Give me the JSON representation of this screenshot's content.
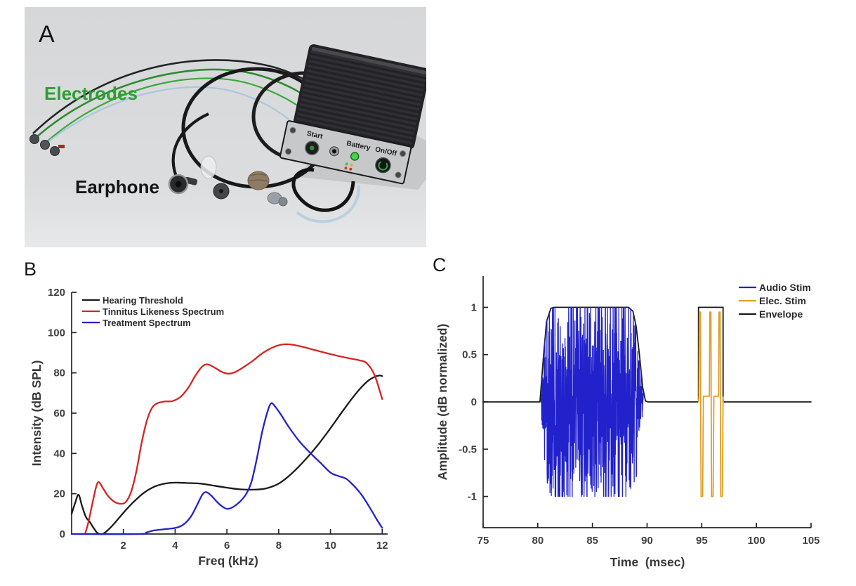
{
  "figure": {
    "background": "#ffffff"
  },
  "panel_a": {
    "label": "A",
    "electrodes_label": "Electrodes",
    "electrodes_color": "#2f9e33",
    "earphone_label": "Earphone",
    "device": {
      "start_label": "Start",
      "battery_label": "Battery",
      "onoff_label": "On/Off"
    }
  },
  "chart_data": [
    {
      "panel_label": "B",
      "type": "line",
      "title": "",
      "xlabel": "Freq (kHz)",
      "ylabel": "Intensity (dB SPL)",
      "xlim": [
        0,
        12.1
      ],
      "ylim": [
        0,
        120
      ],
      "xticks": [
        2,
        4,
        6,
        8,
        10,
        12
      ],
      "yticks": [
        0,
        20,
        40,
        60,
        80,
        100,
        120
      ],
      "grid": false,
      "legend_position": "top-left",
      "series": [
        {
          "name": "Hearing Threshold",
          "color": "#1a1a1a",
          "kind": "smooth",
          "z": 1,
          "points": [
            [
              0,
              10
            ],
            [
              0.15,
              16
            ],
            [
              0.27,
              19.5
            ],
            [
              0.4,
              14
            ],
            [
              0.55,
              8.5
            ],
            [
              0.7,
              6
            ],
            [
              0.85,
              3
            ],
            [
              1.0,
              0.5
            ],
            [
              1.2,
              0
            ],
            [
              1.45,
              2.5
            ],
            [
              1.7,
              6
            ],
            [
              2.0,
              10.5
            ],
            [
              2.4,
              16
            ],
            [
              2.8,
              20.5
            ],
            [
              3.2,
              23.5
            ],
            [
              3.6,
              25
            ],
            [
              4.0,
              25.5
            ],
            [
              4.5,
              25.3
            ],
            [
              5.0,
              25
            ],
            [
              5.5,
              24
            ],
            [
              6.0,
              23
            ],
            [
              6.5,
              22.2
            ],
            [
              7.0,
              22
            ],
            [
              7.5,
              22.6
            ],
            [
              8.0,
              25
            ],
            [
              8.5,
              30
            ],
            [
              9.0,
              36.5
            ],
            [
              9.5,
              44
            ],
            [
              10.0,
              52.5
            ],
            [
              10.5,
              61.5
            ],
            [
              11.0,
              70
            ],
            [
              11.4,
              75.5
            ],
            [
              11.7,
              78
            ],
            [
              11.9,
              78.7
            ],
            [
              12.0,
              78.4
            ]
          ]
        },
        {
          "name": "Tinnitus Likeness Spectrum",
          "color": "#d62420",
          "kind": "smooth",
          "z": 2,
          "points": [
            [
              0.52,
              0
            ],
            [
              0.65,
              6
            ],
            [
              0.8,
              15
            ],
            [
              0.95,
              23.5
            ],
            [
              1.05,
              25.8
            ],
            [
              1.2,
              23
            ],
            [
              1.4,
              19
            ],
            [
              1.65,
              16
            ],
            [
              1.9,
              15
            ],
            [
              2.1,
              16
            ],
            [
              2.3,
              21
            ],
            [
              2.5,
              31
            ],
            [
              2.7,
              45
            ],
            [
              2.9,
              56
            ],
            [
              3.1,
              62.5
            ],
            [
              3.3,
              64.8
            ],
            [
              3.6,
              65.8
            ],
            [
              3.9,
              66
            ],
            [
              4.2,
              68
            ],
            [
              4.5,
              72.5
            ],
            [
              4.8,
              79
            ],
            [
              5.05,
              83.2
            ],
            [
              5.25,
              84.2
            ],
            [
              5.5,
              82.8
            ],
            [
              5.8,
              80.5
            ],
            [
              6.05,
              79.6
            ],
            [
              6.3,
              80.3
            ],
            [
              6.6,
              82.5
            ],
            [
              7.0,
              86
            ],
            [
              7.4,
              90
            ],
            [
              7.8,
              92.8
            ],
            [
              8.1,
              94
            ],
            [
              8.4,
              94.2
            ],
            [
              8.8,
              93.3
            ],
            [
              9.2,
              92
            ],
            [
              9.7,
              90.3
            ],
            [
              10.2,
              88.7
            ],
            [
              10.7,
              87.3
            ],
            [
              11.1,
              86.3
            ],
            [
              11.4,
              84.8
            ],
            [
              11.7,
              79
            ],
            [
              12.0,
              67
            ]
          ]
        },
        {
          "name": "Treatment Spectrum",
          "color": "#2222cc",
          "kind": "smooth",
          "z": 3,
          "points": [
            [
              0,
              0
            ],
            [
              2.6,
              0
            ],
            [
              2.9,
              0.8
            ],
            [
              3.2,
              1.8
            ],
            [
              3.6,
              2.4
            ],
            [
              4.0,
              3
            ],
            [
              4.3,
              4.5
            ],
            [
              4.6,
              8.5
            ],
            [
              4.85,
              14.5
            ],
            [
              5.05,
              19.5
            ],
            [
              5.2,
              20.8
            ],
            [
              5.4,
              19
            ],
            [
              5.65,
              15.5
            ],
            [
              5.9,
              13
            ],
            [
              6.05,
              12.5
            ],
            [
              6.25,
              13.5
            ],
            [
              6.5,
              16
            ],
            [
              6.75,
              20
            ],
            [
              6.95,
              26
            ],
            [
              7.15,
              37
            ],
            [
              7.35,
              50
            ],
            [
              7.55,
              60
            ],
            [
              7.7,
              64.8
            ],
            [
              7.85,
              63.5
            ],
            [
              8.1,
              59
            ],
            [
              8.4,
              53
            ],
            [
              8.8,
              46
            ],
            [
              9.2,
              40.5
            ],
            [
              9.6,
              35.5
            ],
            [
              10.0,
              30.5
            ],
            [
              10.3,
              28.8
            ],
            [
              10.6,
              27.5
            ],
            [
              10.9,
              24
            ],
            [
              11.2,
              19.5
            ],
            [
              11.5,
              13.5
            ],
            [
              11.8,
              7
            ],
            [
              12.0,
              3
            ]
          ]
        }
      ]
    },
    {
      "panel_label": "C",
      "type": "line",
      "title": "",
      "xlabel": "Time  (msec)",
      "ylabel": "Amplitude (dB normalized)",
      "xlim": [
        75,
        105
      ],
      "ylim": [
        -1.33,
        1.33
      ],
      "xticks": [
        75,
        80,
        85,
        90,
        95,
        100,
        105
      ],
      "yticks": [
        -1,
        -0.5,
        0,
        0.5,
        1
      ],
      "grid": false,
      "legend_position": "top-right",
      "series": [
        {
          "name": "Audio Stim",
          "color": "#2222cc",
          "kind": "noise",
          "z": 2,
          "noise": {
            "t_start": 80.3,
            "t_end": 89.65,
            "n_samples": 640,
            "seed": 11,
            "peak": 1.0,
            "gate": "envelope"
          }
        },
        {
          "name": "Elec. Stim",
          "color": "#df9f26",
          "kind": "steps",
          "z": 3,
          "points": [
            [
              94.7,
              0
            ],
            [
              94.74,
              0.06
            ],
            [
              94.78,
              0.95
            ],
            [
              94.88,
              0.95
            ],
            [
              94.91,
              -0.3
            ],
            [
              94.94,
              -1
            ],
            [
              95.08,
              -1
            ],
            [
              95.12,
              -0.4
            ],
            [
              95.15,
              0.06
            ],
            [
              95.7,
              0.06
            ],
            [
              95.74,
              0.95
            ],
            [
              95.84,
              0.95
            ],
            [
              95.87,
              -0.3
            ],
            [
              95.9,
              -1
            ],
            [
              96.04,
              -1
            ],
            [
              96.08,
              -0.4
            ],
            [
              96.11,
              0.06
            ],
            [
              96.54,
              0.06
            ],
            [
              96.58,
              0.95
            ],
            [
              96.68,
              0.95
            ],
            [
              96.71,
              -0.3
            ],
            [
              96.74,
              -1
            ],
            [
              96.88,
              -1
            ],
            [
              96.92,
              -0.45
            ],
            [
              96.95,
              0.05
            ],
            [
              96.97,
              0
            ]
          ]
        },
        {
          "name": "Envelope",
          "color": "#1a1a1a",
          "kind": "steps",
          "z": 1,
          "points": [
            [
              75,
              0
            ],
            [
              80.2,
              0
            ],
            [
              80.5,
              0.45
            ],
            [
              80.8,
              0.85
            ],
            [
              81.2,
              0.99
            ],
            [
              81.5,
              1
            ],
            [
              88.3,
              1
            ],
            [
              88.7,
              0.96
            ],
            [
              89.0,
              0.8
            ],
            [
              89.3,
              0.5
            ],
            [
              89.6,
              0.15
            ],
            [
              89.85,
              0.01
            ],
            [
              90.1,
              0
            ],
            [
              94.7,
              0
            ],
            [
              94.7,
              1
            ],
            [
              96.95,
              1
            ],
            [
              96.95,
              0
            ],
            [
              105,
              0
            ]
          ]
        }
      ]
    }
  ]
}
